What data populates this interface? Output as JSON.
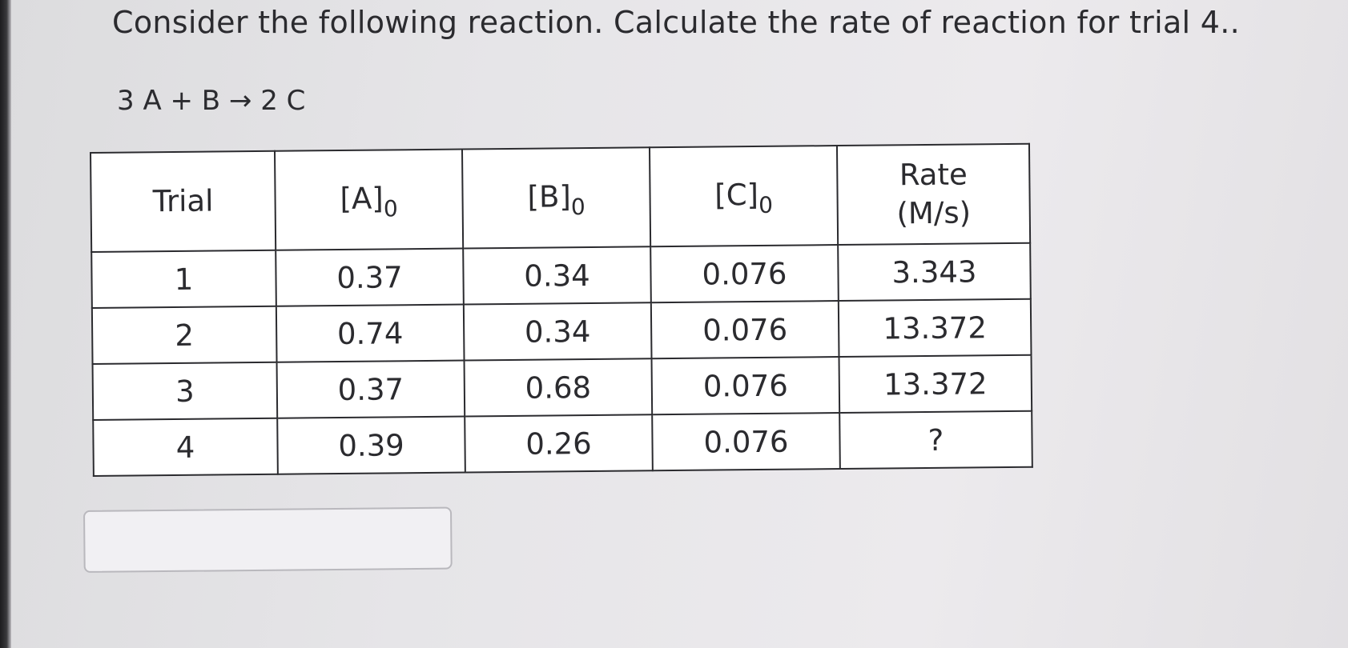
{
  "question": {
    "text": "Consider the following reaction. Calculate the rate of reaction for trial 4..",
    "equation": "3 A + B → 2 C"
  },
  "table": {
    "headers": {
      "trial": "Trial",
      "a": "[A]",
      "b": "[B]",
      "c": "[C]",
      "subscript": "0",
      "rate_line1": "Rate",
      "rate_line2": "(M/s)"
    },
    "rows": [
      {
        "trial": "1",
        "a": "0.37",
        "b": "0.34",
        "c": "0.076",
        "rate": "3.343"
      },
      {
        "trial": "2",
        "a": "0.74",
        "b": "0.34",
        "c": "0.076",
        "rate": "13.372"
      },
      {
        "trial": "3",
        "a": "0.37",
        "b": "0.68",
        "c": "0.076",
        "rate": "13.372"
      },
      {
        "trial": "4",
        "a": "0.39",
        "b": "0.26",
        "c": "0.076",
        "rate": "?"
      }
    ]
  },
  "answer": {
    "value": "",
    "placeholder": ""
  }
}
